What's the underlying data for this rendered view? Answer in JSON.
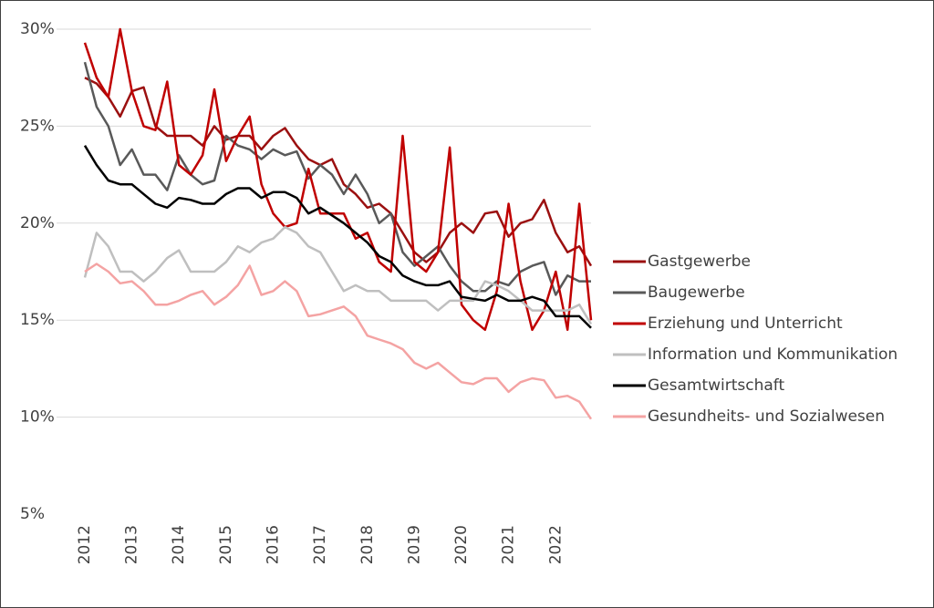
{
  "chart_data": {
    "type": "line",
    "x": [
      2012,
      2012.25,
      2012.5,
      2012.75,
      2013,
      2013.25,
      2013.5,
      2013.75,
      2014,
      2014.25,
      2014.5,
      2014.75,
      2015,
      2015.25,
      2015.5,
      2015.75,
      2016,
      2016.25,
      2016.5,
      2016.75,
      2017,
      2017.25,
      2017.5,
      2017.75,
      2018,
      2018.25,
      2018.5,
      2018.75,
      2019,
      2019.25,
      2019.5,
      2019.75,
      2020,
      2020.25,
      2020.5,
      2020.75,
      2021,
      2021.25,
      2021.5,
      2021.75,
      2022,
      2022.25,
      2022.5,
      2022.75
    ],
    "xlim": [
      2011.4,
      2022.75
    ],
    "xticks": [
      2012,
      2013,
      2014,
      2015,
      2016,
      2017,
      2018,
      2019,
      2020,
      2021,
      2022
    ],
    "ylim": [
      5,
      30
    ],
    "yticks": [
      {
        "value": 5,
        "label": "5%"
      },
      {
        "value": 10,
        "label": "10%"
      },
      {
        "value": 15,
        "label": "15%"
      },
      {
        "value": 20,
        "label": "20%"
      },
      {
        "value": 25,
        "label": "25%"
      },
      {
        "value": 30,
        "label": "30%"
      }
    ],
    "grid": true,
    "legend": "right",
    "series": [
      {
        "name": "Gastgewerbe",
        "color": "#9b1010",
        "values": [
          27.5,
          27.2,
          26.5,
          25.5,
          26.8,
          27,
          25,
          24.5,
          24.5,
          24.5,
          24,
          25,
          24.3,
          24.5,
          24.5,
          23.8,
          24.5,
          24.9,
          24,
          23.3,
          23,
          23.3,
          22,
          21.5,
          20.8,
          21,
          20.5,
          19.5,
          18.5,
          18,
          18.5,
          19.5,
          20,
          19.5,
          20.5,
          20.6,
          19.3,
          20,
          20.2,
          21.2,
          19.5,
          18.5,
          18.8,
          17.8
        ]
      },
      {
        "name": "Baugewerbe",
        "color": "#595959",
        "values": [
          28.3,
          26,
          25,
          23,
          23.8,
          22.5,
          22.5,
          21.7,
          23.5,
          22.5,
          22,
          22.2,
          24.5,
          24,
          23.8,
          23.3,
          23.8,
          23.5,
          23.7,
          22.3,
          23,
          22.5,
          21.5,
          22.5,
          21.5,
          20,
          20.5,
          18.5,
          17.8,
          18.3,
          18.8,
          17.8,
          17,
          16.5,
          16.5,
          17,
          16.8,
          17.5,
          17.8,
          18,
          16.3,
          17.3,
          17,
          17
        ]
      },
      {
        "name": "Erziehung und Unterricht",
        "color": "#c00000",
        "values": [
          29.3,
          27.5,
          26.5,
          30,
          26.8,
          25,
          24.8,
          27.3,
          23,
          22.5,
          23.5,
          26.9,
          23.2,
          24.5,
          25.5,
          22,
          20.5,
          19.8,
          20,
          22.8,
          20.5,
          20.5,
          20.5,
          19.2,
          19.5,
          18,
          17.5,
          24.5,
          18,
          17.5,
          18.5,
          23.9,
          15.8,
          15,
          14.5,
          16.5,
          21,
          17,
          14.5,
          15.5,
          17.5,
          14.5,
          21,
          15
        ]
      },
      {
        "name": "Information und Kommunikation",
        "color": "#bfbfbf",
        "values": [
          17.2,
          19.5,
          18.8,
          17.5,
          17.5,
          17,
          17.5,
          18.2,
          18.6,
          17.5,
          17.5,
          17.5,
          18,
          18.8,
          18.5,
          19,
          19.2,
          19.8,
          19.5,
          18.8,
          18.5,
          17.5,
          16.5,
          16.8,
          16.5,
          16.5,
          16,
          16,
          16,
          16,
          15.5,
          16,
          16,
          16,
          17,
          16.8,
          16.5,
          16,
          15.5,
          15.5,
          15.5,
          15.5,
          15.8,
          14.8
        ]
      },
      {
        "name": "Gesamtwirtschaft",
        "color": "#000000",
        "values": [
          24,
          23,
          22.2,
          22,
          22,
          21.5,
          21,
          20.8,
          21.3,
          21.2,
          21,
          21,
          21.5,
          21.8,
          21.8,
          21.3,
          21.6,
          21.6,
          21.3,
          20.5,
          20.8,
          20.4,
          20,
          19.5,
          19,
          18.3,
          18,
          17.3,
          17,
          16.8,
          16.8,
          17,
          16.2,
          16.1,
          16,
          16.3,
          16,
          16,
          16.2,
          16,
          15.2,
          15.2,
          15.2,
          14.6
        ]
      },
      {
        "name": "Gesundheits- und Sozialwesen",
        "color": "#f4a3a3",
        "values": [
          17.5,
          17.9,
          17.5,
          16.9,
          17,
          16.5,
          15.8,
          15.8,
          16,
          16.3,
          16.5,
          15.8,
          16.2,
          16.8,
          17.8,
          16.3,
          16.5,
          17,
          16.5,
          15.2,
          15.3,
          15.5,
          15.7,
          15.2,
          14.2,
          14,
          13.8,
          13.5,
          12.8,
          12.5,
          12.8,
          12.3,
          11.8,
          11.7,
          12,
          12,
          11.3,
          11.8,
          12,
          11.9,
          11,
          11.1,
          10.8,
          9.9
        ]
      }
    ]
  }
}
